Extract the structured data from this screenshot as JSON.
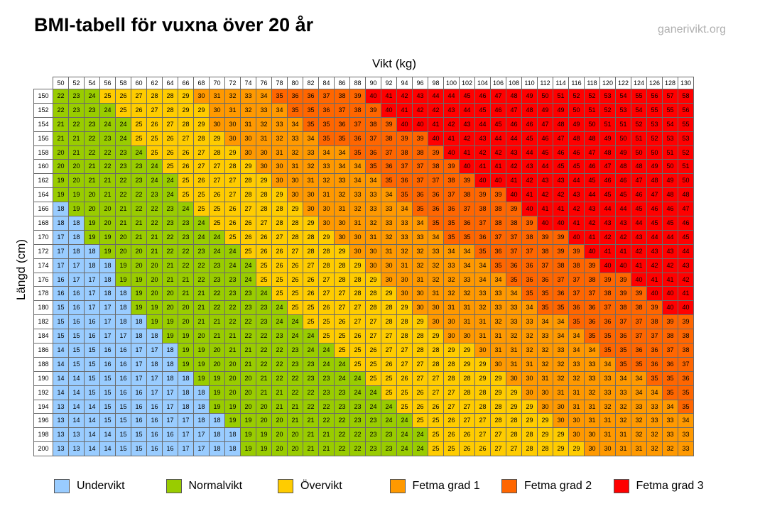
{
  "title": "BMI-tabell för vuxna över 20 år",
  "brand": "ganerivikt.org",
  "chart_data": {
    "type": "heatmap",
    "xlabel": "Vikt (kg)",
    "ylabel": "Längd (cm)",
    "weights": [
      50,
      52,
      54,
      56,
      58,
      60,
      62,
      64,
      66,
      68,
      70,
      72,
      74,
      76,
      78,
      80,
      82,
      84,
      86,
      88,
      90,
      92,
      94,
      96,
      98,
      100,
      102,
      104,
      106,
      108,
      110,
      112,
      114,
      116,
      118,
      120,
      122,
      124,
      126,
      128,
      130
    ],
    "heights": [
      150,
      152,
      154,
      156,
      158,
      160,
      162,
      164,
      166,
      168,
      170,
      172,
      174,
      176,
      178,
      180,
      182,
      184,
      186,
      188,
      190,
      192,
      194,
      196,
      198,
      200
    ],
    "values": [
      [
        22,
        23,
        24,
        25,
        26,
        27,
        28,
        28,
        29,
        30,
        31,
        32,
        33,
        34,
        35,
        36,
        36,
        37,
        38,
        39,
        40,
        41,
        42,
        43,
        44,
        44,
        45,
        46,
        47,
        48,
        49,
        50,
        51,
        52,
        52,
        53,
        54,
        55,
        56,
        57,
        58
      ],
      [
        22,
        23,
        23,
        24,
        25,
        26,
        27,
        28,
        29,
        29,
        30,
        31,
        32,
        33,
        34,
        35,
        35,
        36,
        37,
        38,
        39,
        40,
        41,
        42,
        42,
        43,
        44,
        45,
        46,
        47,
        48,
        49,
        49,
        50,
        51,
        52,
        53,
        54,
        55,
        55,
        56
      ],
      [
        21,
        22,
        23,
        24,
        24,
        25,
        26,
        27,
        28,
        29,
        30,
        30,
        31,
        32,
        33,
        34,
        35,
        35,
        36,
        37,
        38,
        39,
        40,
        40,
        41,
        42,
        43,
        44,
        45,
        46,
        46,
        47,
        48,
        49,
        50,
        51,
        51,
        52,
        53,
        54,
        55
      ],
      [
        21,
        21,
        22,
        23,
        24,
        25,
        25,
        26,
        27,
        28,
        29,
        30,
        30,
        31,
        32,
        33,
        34,
        35,
        35,
        36,
        37,
        38,
        39,
        39,
        40,
        41,
        42,
        43,
        44,
        44,
        45,
        46,
        47,
        48,
        48,
        49,
        50,
        51,
        52,
        53,
        53
      ],
      [
        20,
        21,
        22,
        22,
        23,
        24,
        25,
        26,
        26,
        27,
        28,
        29,
        30,
        30,
        31,
        32,
        33,
        34,
        34,
        35,
        36,
        37,
        38,
        38,
        39,
        40,
        41,
        42,
        42,
        43,
        44,
        45,
        46,
        46,
        47,
        48,
        49,
        50,
        50,
        51,
        52
      ],
      [
        20,
        20,
        21,
        22,
        23,
        23,
        24,
        25,
        26,
        27,
        27,
        28,
        29,
        30,
        30,
        31,
        32,
        33,
        34,
        34,
        35,
        36,
        37,
        37,
        38,
        39,
        40,
        41,
        41,
        42,
        43,
        44,
        45,
        45,
        46,
        47,
        48,
        48,
        49,
        50,
        51
      ],
      [
        19,
        20,
        21,
        21,
        22,
        23,
        24,
        24,
        25,
        26,
        27,
        27,
        28,
        29,
        30,
        30,
        31,
        32,
        33,
        34,
        34,
        35,
        36,
        37,
        37,
        38,
        39,
        40,
        40,
        41,
        42,
        43,
        43,
        44,
        45,
        46,
        46,
        47,
        48,
        49,
        50
      ],
      [
        19,
        19,
        20,
        21,
        22,
        22,
        23,
        24,
        25,
        25,
        26,
        27,
        28,
        28,
        29,
        30,
        30,
        31,
        32,
        33,
        33,
        34,
        35,
        36,
        36,
        37,
        38,
        39,
        39,
        40,
        41,
        42,
        42,
        43,
        44,
        45,
        45,
        46,
        47,
        48,
        48
      ],
      [
        18,
        19,
        20,
        20,
        21,
        22,
        22,
        23,
        24,
        25,
        25,
        26,
        27,
        28,
        28,
        29,
        30,
        30,
        31,
        32,
        33,
        33,
        34,
        35,
        36,
        36,
        37,
        38,
        38,
        39,
        40,
        41,
        41,
        42,
        43,
        44,
        44,
        45,
        46,
        46,
        47
      ],
      [
        18,
        18,
        19,
        20,
        21,
        21,
        22,
        23,
        23,
        24,
        25,
        26,
        26,
        27,
        28,
        28,
        29,
        30,
        30,
        31,
        32,
        33,
        33,
        34,
        35,
        35,
        36,
        37,
        38,
        38,
        39,
        40,
        40,
        41,
        42,
        43,
        43,
        44,
        45,
        45,
        46
      ],
      [
        17,
        18,
        19,
        19,
        20,
        21,
        21,
        22,
        23,
        24,
        24,
        25,
        26,
        26,
        27,
        28,
        28,
        29,
        30,
        30,
        31,
        32,
        33,
        33,
        34,
        35,
        35,
        36,
        37,
        37,
        38,
        39,
        39,
        40,
        41,
        42,
        42,
        43,
        44,
        44,
        45
      ],
      [
        17,
        18,
        18,
        19,
        20,
        20,
        21,
        22,
        22,
        23,
        24,
        24,
        25,
        26,
        26,
        27,
        28,
        28,
        29,
        30,
        30,
        31,
        32,
        32,
        33,
        34,
        34,
        35,
        36,
        37,
        37,
        38,
        39,
        39,
        40,
        41,
        41,
        42,
        43,
        43,
        44
      ],
      [
        17,
        17,
        18,
        18,
        19,
        20,
        20,
        21,
        22,
        22,
        23,
        24,
        24,
        25,
        26,
        26,
        27,
        28,
        28,
        29,
        30,
        30,
        31,
        32,
        32,
        33,
        34,
        34,
        35,
        36,
        36,
        37,
        38,
        38,
        39,
        40,
        40,
        41,
        42,
        42,
        43
      ],
      [
        16,
        17,
        17,
        18,
        19,
        19,
        20,
        21,
        21,
        22,
        23,
        23,
        24,
        25,
        25,
        26,
        26,
        27,
        28,
        28,
        29,
        30,
        30,
        31,
        32,
        32,
        33,
        34,
        34,
        35,
        36,
        36,
        37,
        37,
        38,
        39,
        39,
        40,
        41,
        41,
        42
      ],
      [
        16,
        16,
        17,
        18,
        18,
        19,
        20,
        20,
        21,
        21,
        22,
        23,
        23,
        24,
        25,
        25,
        26,
        27,
        27,
        28,
        28,
        29,
        30,
        30,
        31,
        32,
        32,
        33,
        33,
        34,
        35,
        35,
        36,
        37,
        37,
        38,
        39,
        39,
        40,
        40,
        41
      ],
      [
        15,
        16,
        17,
        17,
        18,
        19,
        19,
        20,
        20,
        21,
        22,
        22,
        23,
        23,
        24,
        25,
        25,
        26,
        27,
        27,
        28,
        28,
        29,
        30,
        30,
        31,
        31,
        32,
        33,
        33,
        34,
        35,
        35,
        36,
        36,
        37,
        38,
        38,
        39,
        40,
        40
      ],
      [
        15,
        16,
        16,
        17,
        18,
        18,
        19,
        19,
        20,
        21,
        21,
        22,
        22,
        23,
        24,
        24,
        25,
        25,
        26,
        27,
        27,
        28,
        28,
        29,
        30,
        30,
        31,
        31,
        32,
        33,
        33,
        34,
        34,
        35,
        36,
        36,
        37,
        37,
        38,
        39,
        39
      ],
      [
        15,
        15,
        16,
        17,
        17,
        18,
        18,
        19,
        19,
        20,
        21,
        21,
        22,
        22,
        23,
        24,
        24,
        25,
        25,
        26,
        27,
        27,
        28,
        28,
        29,
        30,
        30,
        31,
        31,
        32,
        32,
        33,
        34,
        34,
        35,
        35,
        36,
        37,
        37,
        38,
        38
      ],
      [
        14,
        15,
        15,
        16,
        16,
        17,
        17,
        18,
        19,
        19,
        20,
        21,
        21,
        22,
        22,
        23,
        24,
        24,
        25,
        25,
        26,
        27,
        27,
        28,
        28,
        29,
        29,
        30,
        31,
        31,
        32,
        32,
        33,
        34,
        34,
        35,
        35,
        36,
        36,
        37,
        38
      ],
      [
        14,
        15,
        15,
        16,
        16,
        17,
        18,
        18,
        19,
        19,
        20,
        20,
        21,
        22,
        22,
        23,
        23,
        24,
        24,
        25,
        25,
        26,
        27,
        27,
        28,
        28,
        29,
        29,
        30,
        31,
        31,
        32,
        32,
        33,
        33,
        34,
        35,
        35,
        36,
        36,
        37
      ],
      [
        14,
        14,
        15,
        15,
        16,
        17,
        17,
        18,
        18,
        19,
        19,
        20,
        20,
        21,
        22,
        22,
        23,
        23,
        24,
        24,
        25,
        25,
        26,
        27,
        27,
        28,
        28,
        29,
        29,
        30,
        30,
        31,
        32,
        32,
        33,
        33,
        34,
        34,
        35,
        35,
        36
      ],
      [
        14,
        14,
        15,
        15,
        16,
        16,
        17,
        17,
        18,
        18,
        19,
        20,
        20,
        21,
        21,
        22,
        22,
        23,
        23,
        24,
        24,
        25,
        25,
        26,
        27,
        27,
        28,
        28,
        29,
        29,
        30,
        30,
        31,
        31,
        32,
        33,
        33,
        34,
        34,
        35,
        35
      ],
      [
        13,
        14,
        14,
        15,
        15,
        16,
        16,
        17,
        18,
        18,
        19,
        19,
        20,
        20,
        21,
        21,
        22,
        22,
        23,
        23,
        24,
        24,
        25,
        26,
        26,
        27,
        27,
        28,
        28,
        29,
        29,
        30,
        30,
        31,
        31,
        32,
        32,
        33,
        33,
        34,
        35
      ],
      [
        13,
        14,
        14,
        15,
        15,
        16,
        16,
        17,
        17,
        18,
        18,
        19,
        19,
        20,
        20,
        21,
        21,
        22,
        22,
        23,
        23,
        24,
        24,
        25,
        25,
        26,
        27,
        27,
        28,
        28,
        29,
        29,
        30,
        30,
        31,
        31,
        32,
        32,
        33,
        33,
        34
      ],
      [
        13,
        13,
        14,
        14,
        15,
        15,
        16,
        16,
        17,
        17,
        18,
        18,
        19,
        19,
        20,
        20,
        21,
        21,
        22,
        22,
        23,
        23,
        24,
        24,
        25,
        26,
        26,
        27,
        27,
        28,
        28,
        29,
        29,
        30,
        30,
        31,
        31,
        32,
        32,
        33,
        33
      ],
      [
        13,
        13,
        14,
        14,
        15,
        15,
        16,
        16,
        17,
        17,
        18,
        18,
        19,
        19,
        20,
        20,
        21,
        21,
        22,
        22,
        23,
        23,
        24,
        24,
        25,
        25,
        26,
        26,
        27,
        27,
        28,
        28,
        29,
        29,
        30,
        30,
        31,
        31,
        32,
        32,
        33
      ]
    ],
    "categories": [
      {
        "label": "Undervikt",
        "color": "#99ccff",
        "range": [
          0,
          18.5
        ]
      },
      {
        "label": "Normalvikt",
        "color": "#99cc00",
        "range": [
          18.5,
          25
        ]
      },
      {
        "label": "Övervikt",
        "color": "#ffcc00",
        "range": [
          25,
          30
        ]
      },
      {
        "label": "Fetma grad 1",
        "color": "#ff9900",
        "range": [
          30,
          35
        ]
      },
      {
        "label": "Fetma grad 2",
        "color": "#ff6600",
        "range": [
          35,
          40
        ]
      },
      {
        "label": "Fetma grad 3",
        "color": "#ff0000",
        "range": [
          40,
          100
        ]
      }
    ]
  }
}
